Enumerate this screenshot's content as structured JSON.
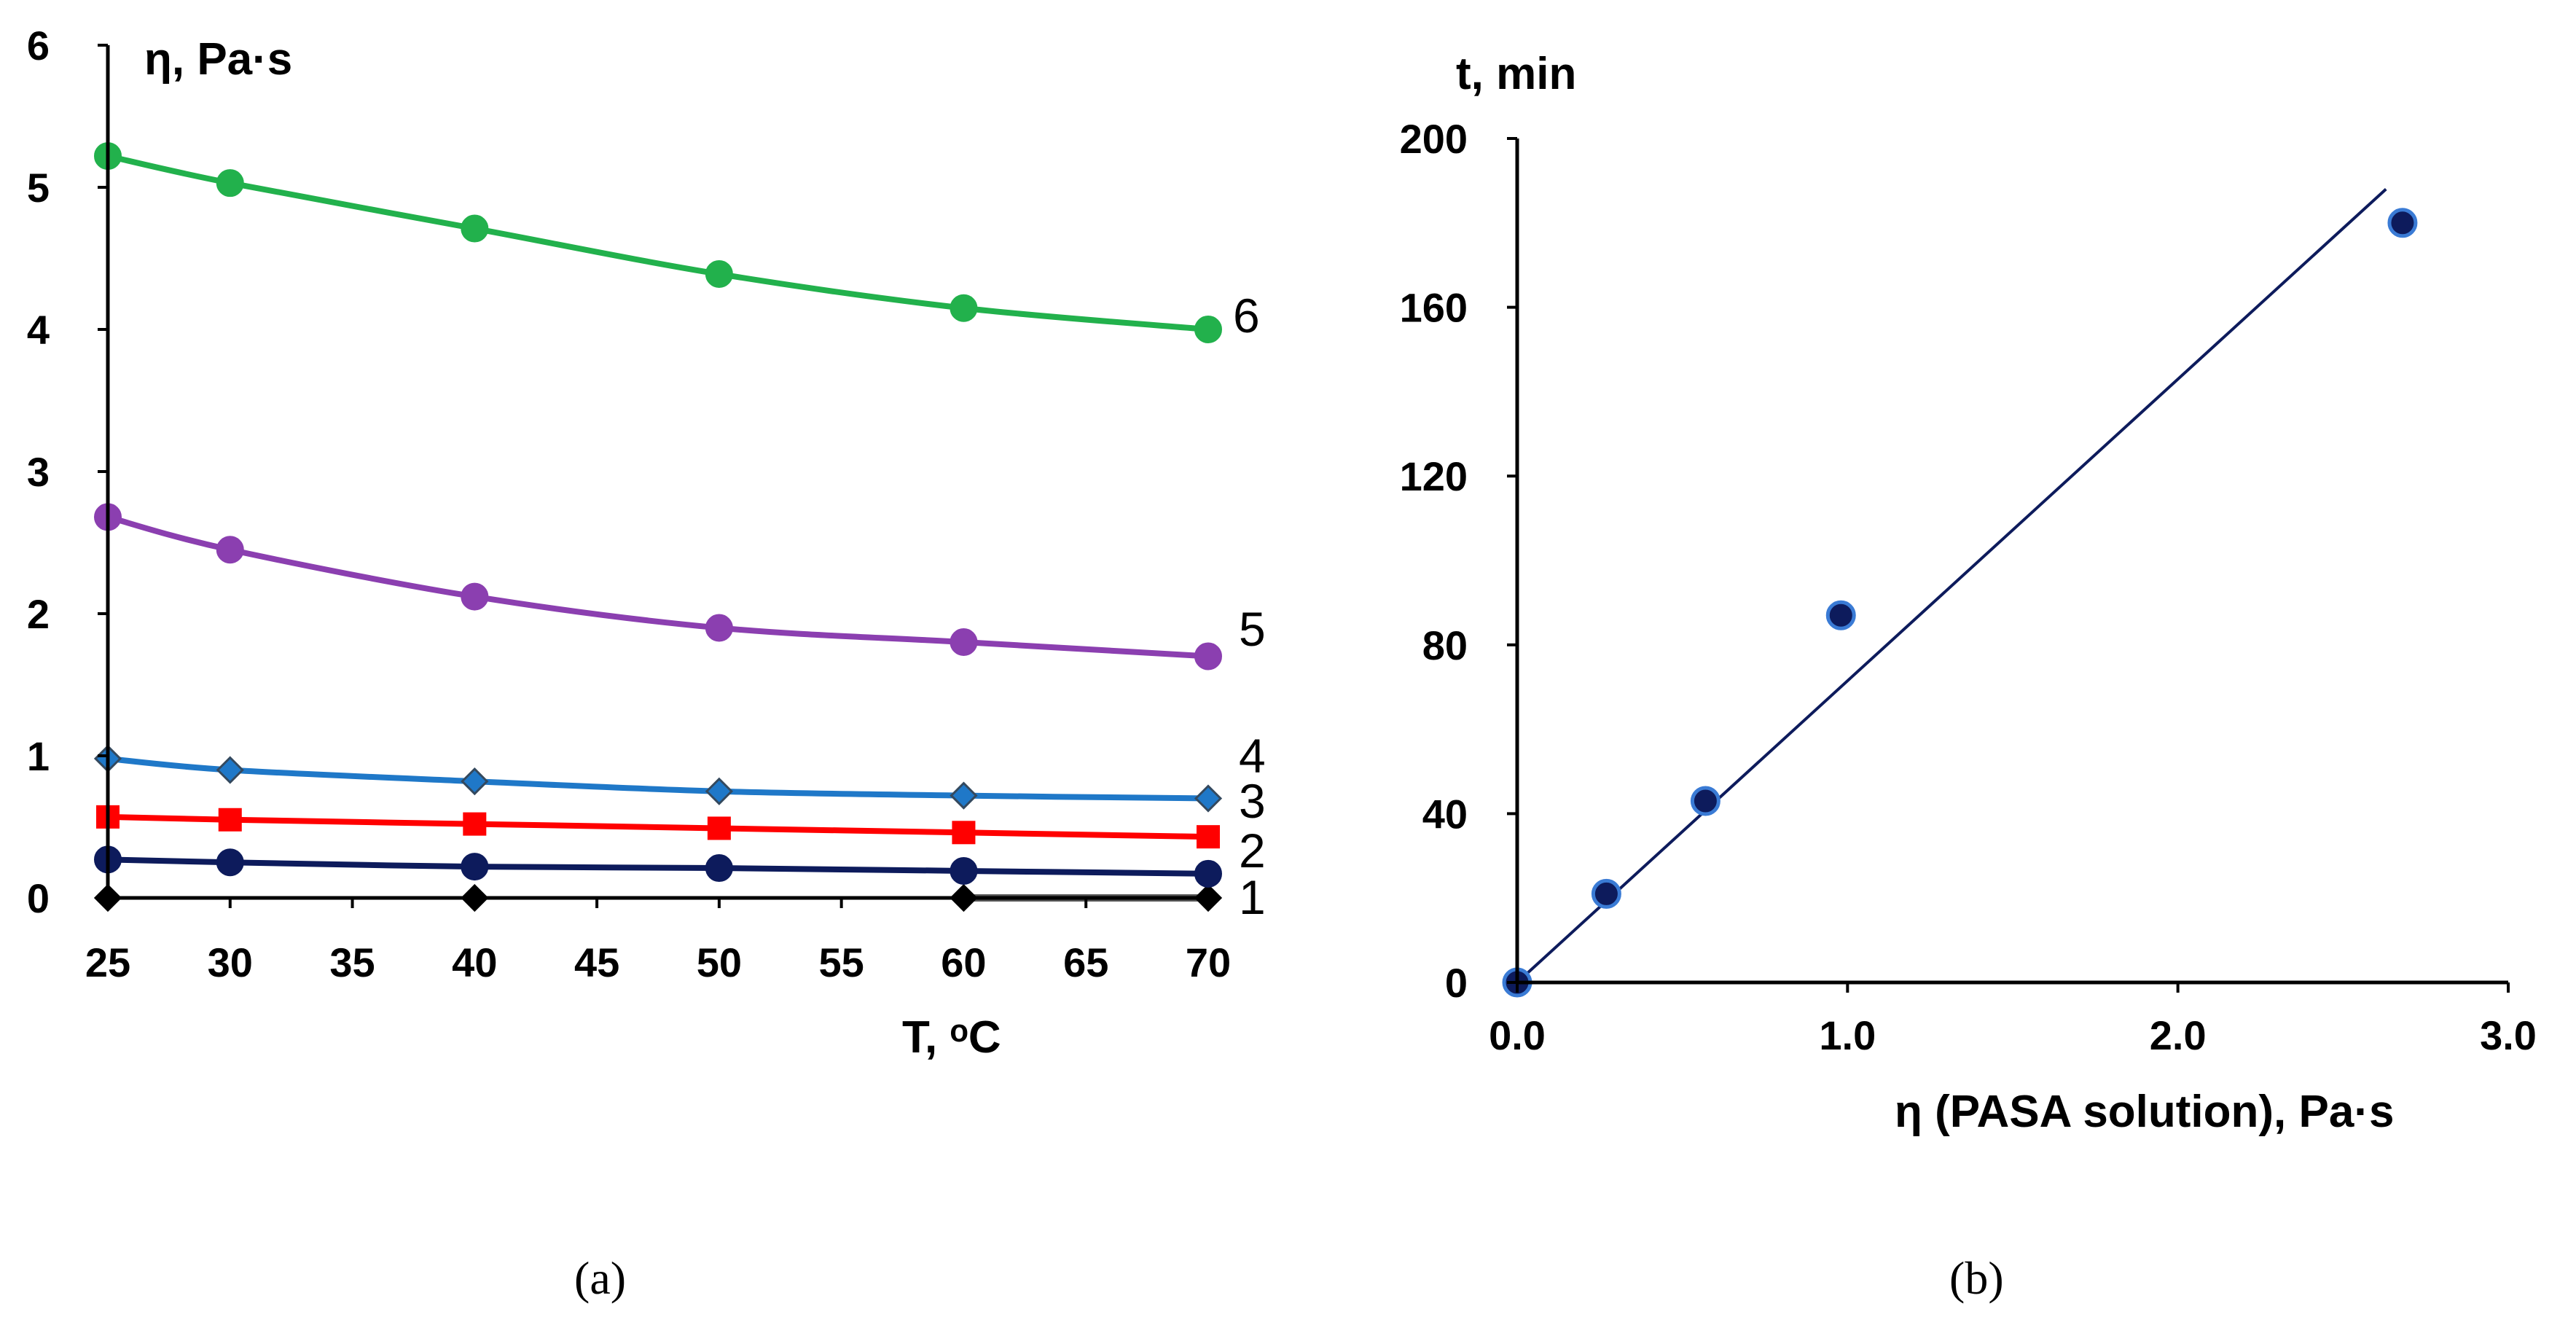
{
  "chart_data": [
    {
      "id": "a",
      "type": "line",
      "caption": "(a)",
      "xlabel": "T, ᵒC",
      "ylabel": "η, Pa·s",
      "xlim": [
        25,
        70
      ],
      "ylim": [
        0,
        6
      ],
      "xticks": [
        25,
        30,
        35,
        40,
        45,
        50,
        55,
        60,
        65,
        70
      ],
      "yticks": [
        0,
        1,
        2,
        3,
        4,
        5,
        6
      ],
      "x": [
        25,
        30,
        40,
        50,
        60,
        70
      ],
      "series": [
        {
          "name": "1",
          "color": "#000000",
          "marker": "diamond",
          "values": [
            0,
            null,
            0,
            null,
            0,
            0
          ]
        },
        {
          "name": "2",
          "color": "#0d1b5c",
          "marker": "circle",
          "values": [
            0.27,
            0.25,
            0.22,
            0.21,
            0.19,
            0.17
          ]
        },
        {
          "name": "3",
          "color": "#ff0000",
          "marker": "square",
          "values": [
            0.57,
            0.55,
            0.52,
            0.49,
            0.46,
            0.43
          ]
        },
        {
          "name": "4",
          "color": "#1f78c8",
          "marker": "diamond",
          "values": [
            0.98,
            0.9,
            0.82,
            0.75,
            0.72,
            0.7
          ]
        },
        {
          "name": "5",
          "color": "#8b3fb0",
          "marker": "circle",
          "values": [
            2.68,
            2.45,
            2.12,
            1.9,
            1.8,
            1.7
          ]
        },
        {
          "name": "6",
          "color": "#22b14c",
          "marker": "circle",
          "values": [
            5.22,
            5.03,
            4.71,
            4.39,
            4.15,
            4.0
          ]
        }
      ]
    },
    {
      "id": "b",
      "type": "scatter",
      "caption": "(b)",
      "xlabel": "η (PASA solution), Pa·s",
      "ylabel": "t, min",
      "xlim": [
        0,
        3
      ],
      "ylim": [
        0,
        200
      ],
      "xticks": [
        "0.0",
        "1.0",
        "2.0",
        "3.0"
      ],
      "yticks": [
        0,
        40,
        80,
        120,
        160,
        200
      ],
      "points": [
        {
          "x": 0.0,
          "y": 0
        },
        {
          "x": 0.27,
          "y": 21
        },
        {
          "x": 0.57,
          "y": 43
        },
        {
          "x": 0.98,
          "y": 87
        },
        {
          "x": 2.68,
          "y": 180
        }
      ],
      "trendline": {
        "x": [
          0.0,
          2.63
        ],
        "y": [
          0,
          188
        ]
      },
      "point_color": "#0d1b5c",
      "point_edge": "#3a7bd5",
      "line_color": "#0d1b5c"
    }
  ]
}
